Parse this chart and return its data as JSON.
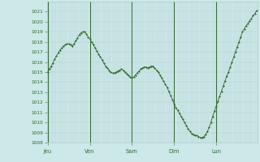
{
  "background_color": "#cce8e8",
  "line_color": "#2d6a2d",
  "marker_color": "#2d6a2d",
  "grid_color": "#b0c8c8",
  "day_line_color": "#336633",
  "ylim": [
    1008,
    1022
  ],
  "yticks": [
    1008,
    1009,
    1010,
    1011,
    1012,
    1013,
    1014,
    1015,
    1016,
    1017,
    1018,
    1019,
    1020,
    1021
  ],
  "xtick_labels": [
    "Jeu",
    "Ven",
    "Sam",
    "Dim",
    "Lun"
  ],
  "xtick_positions": [
    0,
    24,
    48,
    72,
    96
  ],
  "day_lines": [
    0,
    24,
    48,
    72,
    96
  ],
  "values": [
    1015.0,
    1015.3,
    1015.6,
    1015.9,
    1016.3,
    1016.6,
    1016.9,
    1017.2,
    1017.4,
    1017.6,
    1017.7,
    1017.8,
    1017.8,
    1017.7,
    1017.6,
    1017.8,
    1018.1,
    1018.4,
    1018.7,
    1018.9,
    1019.0,
    1019.0,
    1018.8,
    1018.5,
    1018.3,
    1018.0,
    1017.7,
    1017.4,
    1017.1,
    1016.8,
    1016.5,
    1016.2,
    1015.9,
    1015.6,
    1015.4,
    1015.2,
    1015.0,
    1014.9,
    1014.9,
    1015.0,
    1015.1,
    1015.2,
    1015.3,
    1015.2,
    1015.0,
    1014.8,
    1014.7,
    1014.5,
    1014.4,
    1014.5,
    1014.7,
    1014.9,
    1015.1,
    1015.3,
    1015.4,
    1015.5,
    1015.5,
    1015.4,
    1015.5,
    1015.6,
    1015.6,
    1015.4,
    1015.2,
    1015.0,
    1014.7,
    1014.4,
    1014.1,
    1013.8,
    1013.5,
    1013.1,
    1012.7,
    1012.3,
    1011.9,
    1011.5,
    1011.2,
    1010.9,
    1010.6,
    1010.3,
    1010.0,
    1009.7,
    1009.4,
    1009.1,
    1008.9,
    1008.8,
    1008.7,
    1008.7,
    1008.6,
    1008.5,
    1008.5,
    1008.6,
    1008.8,
    1009.1,
    1009.5,
    1010.0,
    1010.6,
    1011.1,
    1011.6,
    1012.1,
    1012.6,
    1013.1,
    1013.6,
    1014.1,
    1014.6,
    1015.0,
    1015.5,
    1016.0,
    1016.5,
    1017.0,
    1017.5,
    1018.0,
    1018.5,
    1019.0,
    1019.3,
    1019.6,
    1019.8,
    1020.1,
    1020.3,
    1020.6,
    1020.8,
    1021.1
  ]
}
